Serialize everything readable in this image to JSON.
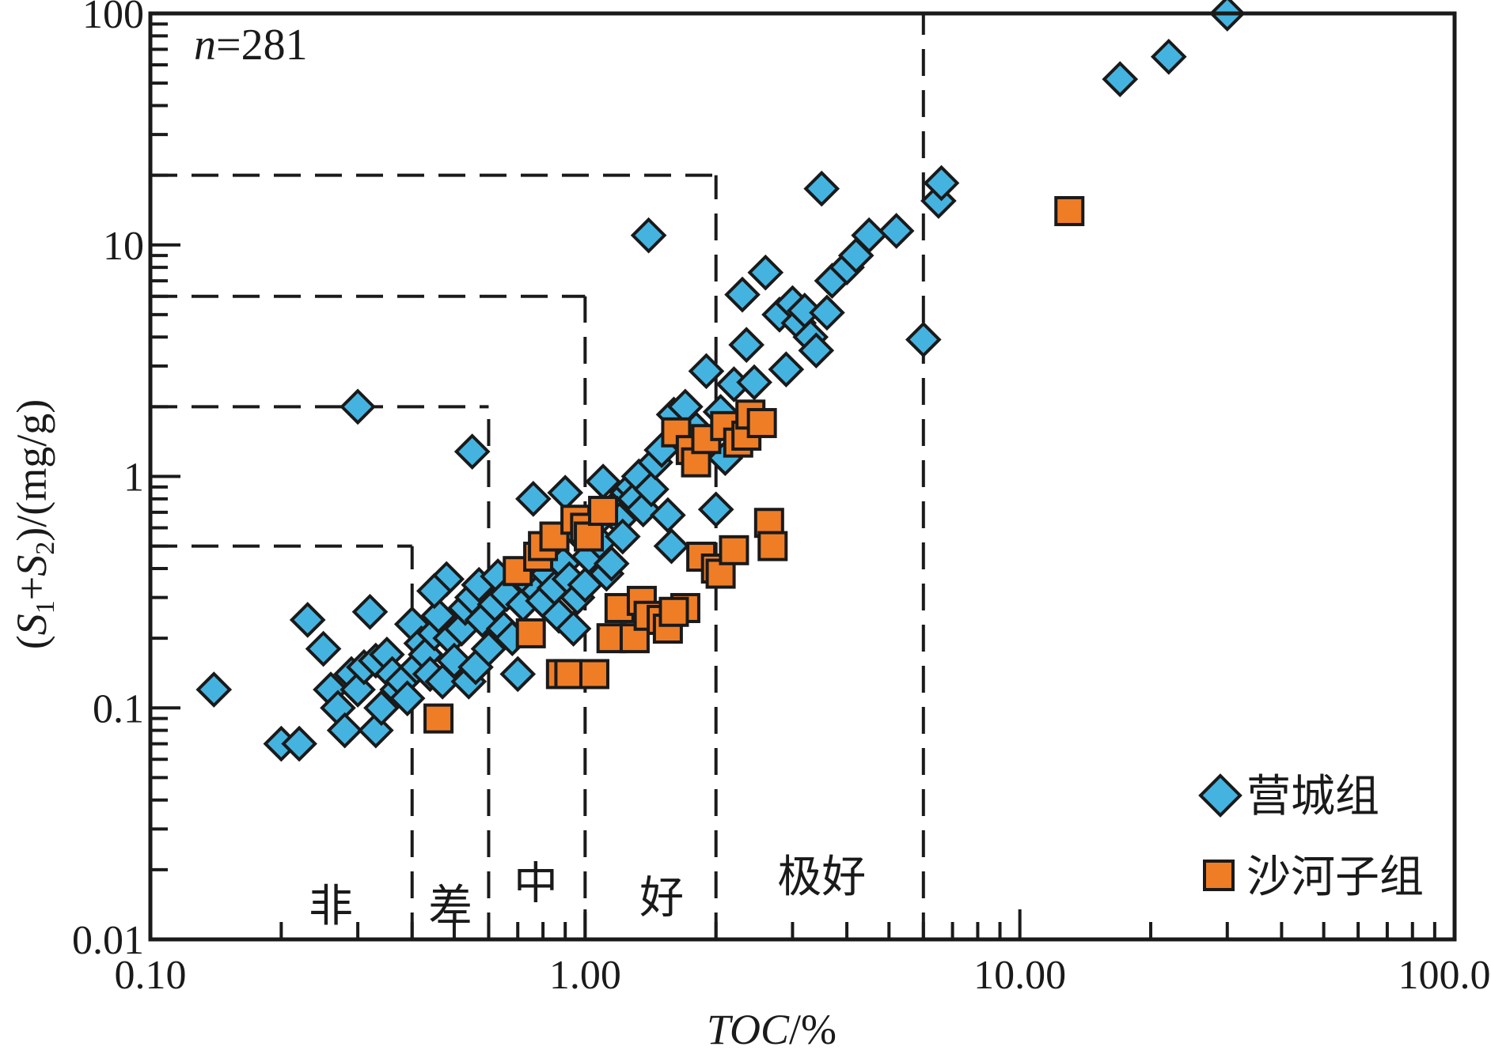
{
  "chart_data": {
    "type": "scatter",
    "annotation": {
      "n_label": "n",
      "n_value": "=281"
    },
    "x_axis": {
      "title_italic": "TOC",
      "title_rest": "/%",
      "scale": "log",
      "range": [
        0.1,
        100
      ],
      "ticks": [
        {
          "value": 0.1,
          "label": "0.10"
        },
        {
          "value": 1,
          "label": "1.00"
        },
        {
          "value": 10,
          "label": "10.00"
        },
        {
          "value": 100,
          "label": "100.00"
        }
      ]
    },
    "y_axis": {
      "title_parts": [
        "(",
        "S",
        "1",
        "+",
        "S",
        "2",
        ")/(mg/g)"
      ],
      "scale": "log",
      "range": [
        0.01,
        100
      ],
      "ticks": [
        {
          "value": 0.01,
          "label": "0.01"
        },
        {
          "value": 0.1,
          "label": "0.1"
        },
        {
          "value": 1,
          "label": "1"
        },
        {
          "value": 10,
          "label": "10"
        },
        {
          "value": 100,
          "label": "100"
        }
      ]
    },
    "grid": false,
    "legend_position": "bottom-right",
    "colors": {
      "yingcheng": "#45b3e0",
      "shahezi": "#ef7d26",
      "outline": "#1a1a1a"
    },
    "classification_lines": [
      {
        "toc": 0.4,
        "s": 0.5
      },
      {
        "toc": 0.6,
        "s": 2
      },
      {
        "toc": 1.0,
        "s": 6
      },
      {
        "toc": 2.0,
        "s": 20
      },
      {
        "toc": 6.0,
        "s": 100
      }
    ],
    "zone_labels": [
      {
        "text": "非",
        "x": 0.26,
        "y": 0.012
      },
      {
        "text": "差",
        "x": 0.49,
        "y": 0.012
      },
      {
        "text": "中",
        "x": 0.77,
        "y": 0.015
      },
      {
        "text": "好",
        "x": 1.5,
        "y": 0.013
      },
      {
        "text": "极好",
        "x": 3.5,
        "y": 0.016
      }
    ],
    "series": [
      {
        "name": "营城组",
        "marker": "diamond",
        "points": [
          [
            0.14,
            0.12
          ],
          [
            0.2,
            0.07
          ],
          [
            0.22,
            0.07
          ],
          [
            0.23,
            0.24
          ],
          [
            0.25,
            0.18
          ],
          [
            0.26,
            0.12
          ],
          [
            0.27,
            0.1
          ],
          [
            0.28,
            0.08
          ],
          [
            0.29,
            0.14
          ],
          [
            0.3,
            0.12
          ],
          [
            0.31,
            0.15
          ],
          [
            0.32,
            0.26
          ],
          [
            0.33,
            0.08
          ],
          [
            0.33,
            0.16
          ],
          [
            0.34,
            0.1
          ],
          [
            0.35,
            0.17
          ],
          [
            0.36,
            0.14
          ],
          [
            0.37,
            0.12
          ],
          [
            0.38,
            0.13
          ],
          [
            0.39,
            0.11
          ],
          [
            0.4,
            0.23
          ],
          [
            0.41,
            0.15
          ],
          [
            0.42,
            0.19
          ],
          [
            0.43,
            0.17
          ],
          [
            0.44,
            0.14
          ],
          [
            0.45,
            0.21
          ],
          [
            0.46,
            0.25
          ],
          [
            0.47,
            0.13
          ],
          [
            0.48,
            0.36
          ],
          [
            0.49,
            0.2
          ],
          [
            0.5,
            0.16
          ],
          [
            0.52,
            0.22
          ],
          [
            0.53,
            0.27
          ],
          [
            0.54,
            0.13
          ],
          [
            0.55,
            0.3
          ],
          [
            0.56,
            0.15
          ],
          [
            0.57,
            0.34
          ],
          [
            0.58,
            0.24
          ],
          [
            0.6,
            0.18
          ],
          [
            0.62,
            0.28
          ],
          [
            0.63,
            0.37
          ],
          [
            0.65,
            0.22
          ],
          [
            0.66,
            0.31
          ],
          [
            0.68,
            0.2
          ],
          [
            0.7,
            0.14
          ],
          [
            0.72,
            0.28
          ],
          [
            0.74,
            0.35
          ],
          [
            0.76,
            0.8
          ],
          [
            0.78,
            0.32
          ],
          [
            0.8,
            0.29
          ],
          [
            0.82,
            0.38
          ],
          [
            0.85,
            0.33
          ],
          [
            0.87,
            0.25
          ],
          [
            0.89,
            0.42
          ],
          [
            0.9,
            0.85
          ],
          [
            0.92,
            0.36
          ],
          [
            0.94,
            0.22
          ],
          [
            0.96,
            0.3
          ],
          [
            0.98,
            0.55
          ],
          [
            1.0,
            0.34
          ],
          [
            1.02,
            0.45
          ],
          [
            1.05,
            0.62
          ],
          [
            1.08,
            0.52
          ],
          [
            1.1,
            0.95
          ],
          [
            1.12,
            0.38
          ],
          [
            1.15,
            0.42
          ],
          [
            1.18,
            0.75
          ],
          [
            1.2,
            0.65
          ],
          [
            1.22,
            0.55
          ],
          [
            1.25,
            0.85
          ],
          [
            1.28,
            0.9
          ],
          [
            1.3,
            0.8
          ],
          [
            1.33,
            1.0
          ],
          [
            1.36,
            0.72
          ],
          [
            1.4,
            11.0
          ],
          [
            1.42,
            0.88
          ],
          [
            1.45,
            1.15
          ],
          [
            1.5,
            1.3
          ],
          [
            1.55,
            0.68
          ],
          [
            1.58,
            0.5
          ],
          [
            1.6,
            1.85
          ],
          [
            1.7,
            2.0
          ],
          [
            1.8,
            1.6
          ],
          [
            1.9,
            2.85
          ],
          [
            2.0,
            0.72
          ],
          [
            2.05,
            1.9
          ],
          [
            2.1,
            1.2
          ],
          [
            2.2,
            2.5
          ],
          [
            2.3,
            6.1
          ],
          [
            2.35,
            3.7
          ],
          [
            2.45,
            2.55
          ],
          [
            2.6,
            7.6
          ],
          [
            2.8,
            5.0
          ],
          [
            2.9,
            2.9
          ],
          [
            3.0,
            5.6
          ],
          [
            3.1,
            4.6
          ],
          [
            3.2,
            5.2
          ],
          [
            3.3,
            4.0
          ],
          [
            3.4,
            3.5
          ],
          [
            3.5,
            17.5
          ],
          [
            3.6,
            5.1
          ],
          [
            3.7,
            7.0
          ],
          [
            4.0,
            8.0
          ],
          [
            4.2,
            9.0
          ],
          [
            4.5,
            11.0
          ],
          [
            5.2,
            11.5
          ],
          [
            6.0,
            3.9
          ],
          [
            6.5,
            15.5
          ],
          [
            6.6,
            18.5
          ],
          [
            0.3,
            2.0
          ],
          [
            0.55,
            1.28
          ],
          [
            17.0,
            52.0
          ],
          [
            22.0,
            65.0
          ],
          [
            30.0,
            100.0
          ],
          [
            0.45,
            0.32
          ]
        ]
      },
      {
        "name": "沙河子组",
        "marker": "square",
        "points": [
          [
            0.46,
            0.09
          ],
          [
            0.7,
            0.39
          ],
          [
            0.75,
            0.21
          ],
          [
            0.78,
            0.45
          ],
          [
            0.8,
            0.5
          ],
          [
            0.85,
            0.55
          ],
          [
            0.88,
            0.14
          ],
          [
            0.92,
            0.14
          ],
          [
            0.95,
            0.65
          ],
          [
            1.0,
            0.6
          ],
          [
            1.02,
            0.55
          ],
          [
            1.05,
            0.14
          ],
          [
            1.1,
            0.71
          ],
          [
            1.15,
            0.2
          ],
          [
            1.2,
            0.27
          ],
          [
            1.3,
            0.2
          ],
          [
            1.35,
            0.29
          ],
          [
            1.4,
            0.25
          ],
          [
            1.5,
            0.24
          ],
          [
            1.55,
            0.22
          ],
          [
            1.62,
            1.55
          ],
          [
            1.7,
            0.27
          ],
          [
            1.75,
            1.3
          ],
          [
            1.8,
            1.15
          ],
          [
            1.85,
            0.45
          ],
          [
            1.9,
            1.45
          ],
          [
            2.0,
            0.4
          ],
          [
            2.05,
            0.38
          ],
          [
            2.1,
            1.65
          ],
          [
            2.2,
            0.48
          ],
          [
            2.25,
            1.4
          ],
          [
            2.35,
            1.5
          ],
          [
            2.4,
            1.85
          ],
          [
            2.55,
            1.7
          ],
          [
            2.65,
            0.63
          ],
          [
            2.7,
            0.5
          ],
          [
            13.0,
            14.0
          ],
          [
            1.6,
            0.26
          ]
        ]
      }
    ]
  }
}
